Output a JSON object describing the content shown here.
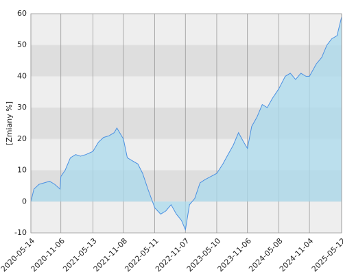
{
  "chart_data": {
    "type": "area",
    "y_label": "[Zmiany %]",
    "x": [
      "2020-05-14",
      "2020-06-01",
      "2020-07-01",
      "2020-08-01",
      "2020-09-01",
      "2020-10-01",
      "2020-11-01",
      "2020-11-06",
      "2020-12-01",
      "2021-01-01",
      "2021-02-01",
      "2021-03-01",
      "2021-04-01",
      "2021-05-13",
      "2021-06-15",
      "2021-07-15",
      "2021-08-15",
      "2021-09-15",
      "2021-10-01",
      "2021-11-08",
      "2021-12-01",
      "2022-01-01",
      "2022-02-01",
      "2022-03-01",
      "2022-04-01",
      "2022-05-11",
      "2022-06-15",
      "2022-07-15",
      "2022-08-15",
      "2022-09-15",
      "2022-10-15",
      "2022-11-07",
      "2022-12-01",
      "2023-01-01",
      "2023-02-01",
      "2023-03-01",
      "2023-05-10",
      "2023-06-15",
      "2023-07-15",
      "2023-08-15",
      "2023-09-15",
      "2023-10-15",
      "2023-11-06",
      "2023-12-01",
      "2024-01-01",
      "2024-02-01",
      "2024-03-01",
      "2024-04-01",
      "2024-05-08",
      "2024-06-15",
      "2024-07-15",
      "2024-08-15",
      "2024-09-15",
      "2024-10-15",
      "2024-11-04",
      "2024-12-15",
      "2025-01-15",
      "2025-02-15",
      "2025-03-15",
      "2025-04-15",
      "2025-05-12"
    ],
    "series": [
      {
        "color": "#4a90e2",
        "fill": "#a9d9ec",
        "values": [
          0,
          4,
          5.5,
          6,
          6.5,
          5.5,
          4,
          8,
          10,
          14,
          15,
          14.5,
          15,
          16,
          19,
          20.5,
          21,
          22,
          23.5,
          20,
          14,
          13,
          12,
          9,
          4,
          -2,
          -4,
          -3,
          -1,
          -4,
          -6,
          -9,
          -1,
          1,
          6,
          7,
          9,
          12,
          15,
          18,
          22,
          19,
          17,
          24,
          27,
          31,
          30,
          33,
          36,
          40,
          41,
          39,
          41,
          40,
          40,
          44,
          46,
          50,
          52,
          53,
          59
        ]
      }
    ],
    "xlim": [
      "2020-05-14",
      "2025-05-12"
    ],
    "xticks": [
      "2020-05-14",
      "2020-11-06",
      "2021-05-13",
      "2021-11-08",
      "2022-05-11",
      "2022-11-07",
      "2023-05-10",
      "2023-11-06",
      "2024-05-08",
      "2024-11-04",
      "2025-05-12"
    ],
    "ylim": [
      -10,
      60
    ],
    "yticks": [
      -10,
      0,
      10,
      20,
      30,
      40,
      50,
      60
    ],
    "grid": true
  }
}
